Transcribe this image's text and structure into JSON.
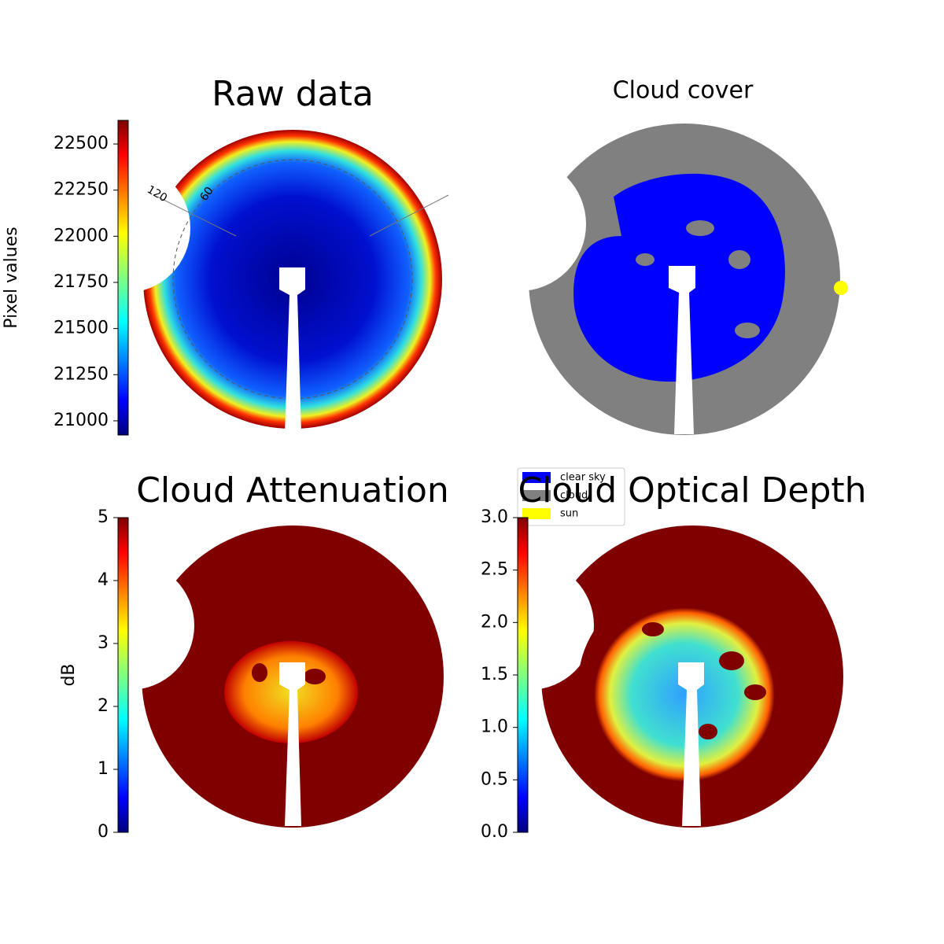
{
  "chart_data": [
    {
      "type": "heatmap",
      "title": "Raw data",
      "colorbar_label": "Pixel values",
      "colormap": "jet",
      "clim": [
        20923,
        22628
      ],
      "cticks": [
        21000,
        21250,
        21500,
        21750,
        22000,
        22250,
        22500
      ],
      "angle_labels": [
        "120",
        "60"
      ]
    },
    {
      "type": "classification",
      "title": "Cloud cover",
      "series": [
        {
          "name": "clear sky",
          "color": "#0000ff"
        },
        {
          "name": "cloud",
          "color": "#808080"
        },
        {
          "name": "sun",
          "color": "#ffff00"
        }
      ]
    },
    {
      "type": "heatmap",
      "title": "Cloud Attenuation",
      "colorbar_label": "dB",
      "colormap": "jet",
      "clim": [
        0,
        5
      ],
      "cticks": [
        0,
        1,
        2,
        3,
        4,
        5
      ]
    },
    {
      "type": "heatmap",
      "title": "Cloud Optical Depth",
      "colormap": "jet",
      "clim": [
        0,
        3
      ],
      "cticks": [
        {
          "value": 0,
          "label": "0.0"
        },
        {
          "value": 0.5,
          "label": "0.5"
        },
        {
          "value": 1,
          "label": "1.0"
        },
        {
          "value": 1.5,
          "label": "1.5"
        },
        {
          "value": 2,
          "label": "2.0"
        },
        {
          "value": 2.5,
          "label": "2.5"
        },
        {
          "value": 3,
          "label": "3.0"
        }
      ]
    }
  ]
}
